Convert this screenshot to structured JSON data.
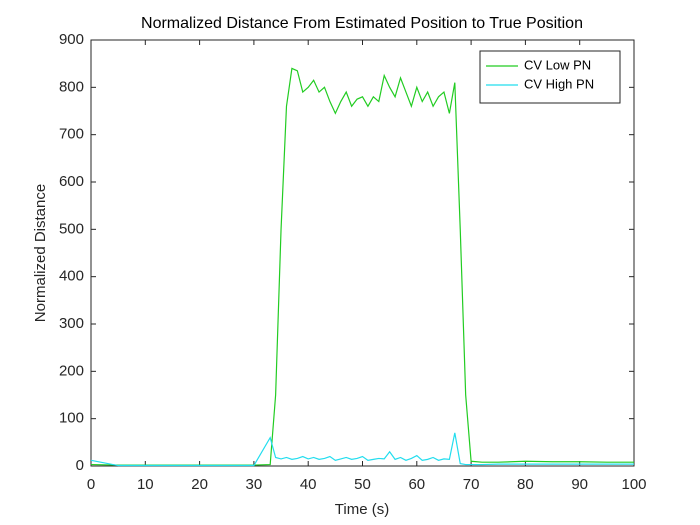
{
  "chart_data": {
    "type": "line",
    "title": "Normalized Distance From Estimated Position to True Position",
    "x_label": "Time (s)",
    "y_label": "Normalized Distance",
    "x": [
      0,
      5,
      10,
      15,
      20,
      25,
      30,
      33,
      34,
      35,
      36,
      37,
      38,
      39,
      40,
      41,
      42,
      43,
      44,
      45,
      46,
      47,
      48,
      49,
      50,
      51,
      52,
      53,
      54,
      55,
      56,
      57,
      58,
      59,
      60,
      61,
      62,
      63,
      64,
      65,
      66,
      67,
      68,
      69,
      70,
      72,
      75,
      80,
      85,
      90,
      95,
      100
    ],
    "series": [
      {
        "name": "CV Low PN",
        "color": "#22cc22",
        "values": [
          3,
          2,
          2,
          2,
          2,
          2,
          2,
          3,
          150,
          500,
          760,
          840,
          835,
          790,
          800,
          815,
          790,
          800,
          770,
          745,
          770,
          790,
          760,
          775,
          780,
          760,
          780,
          770,
          825,
          800,
          780,
          820,
          790,
          760,
          800,
          770,
          790,
          760,
          780,
          790,
          745,
          810,
          500,
          150,
          10,
          8,
          8,
          10,
          9,
          9,
          8,
          8
        ]
      },
      {
        "name": "CV High PN",
        "color": "#22ddee",
        "values": [
          12,
          1,
          1,
          1,
          1,
          1,
          1,
          60,
          18,
          15,
          18,
          14,
          16,
          20,
          15,
          18,
          14,
          16,
          20,
          12,
          15,
          18,
          14,
          16,
          20,
          12,
          14,
          16,
          15,
          30,
          14,
          18,
          12,
          16,
          22,
          12,
          14,
          18,
          12,
          15,
          14,
          70,
          5,
          3,
          3,
          3,
          4,
          4,
          4,
          4,
          4,
          4
        ]
      }
    ],
    "xlim": [
      0,
      100
    ],
    "ylim": [
      0,
      900
    ],
    "xticks": [
      0,
      10,
      20,
      30,
      40,
      50,
      60,
      70,
      80,
      90,
      100
    ],
    "yticks": [
      0,
      100,
      200,
      300,
      400,
      500,
      600,
      700,
      800,
      900
    ],
    "legend": "upper right"
  }
}
